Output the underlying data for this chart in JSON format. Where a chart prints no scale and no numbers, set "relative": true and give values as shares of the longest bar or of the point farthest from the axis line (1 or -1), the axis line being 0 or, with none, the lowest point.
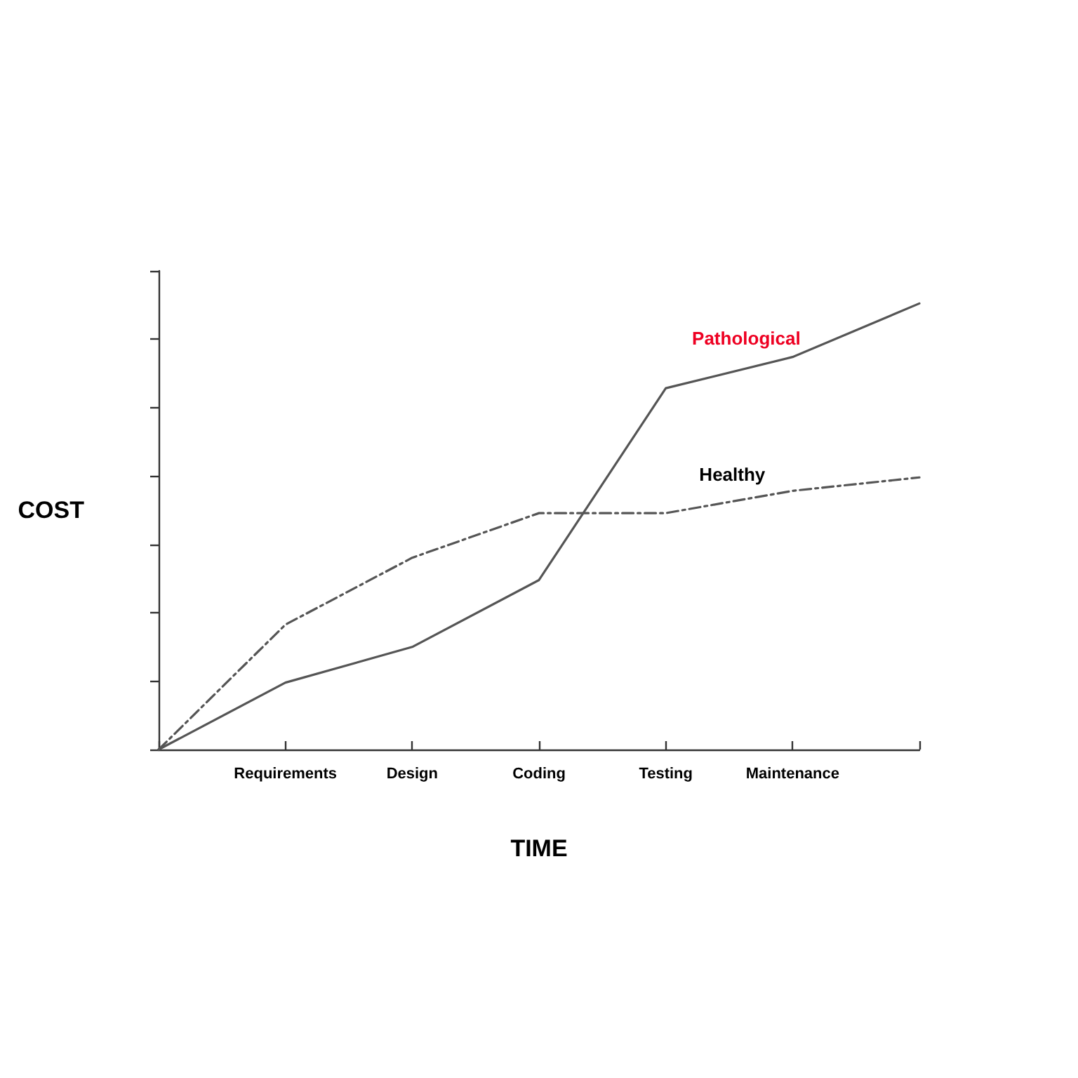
{
  "chart_data": {
    "type": "line",
    "xlabel": "TIME",
    "ylabel": "COST",
    "relative": true,
    "marker": "none",
    "categories": [
      null,
      "Requirements",
      "Design",
      "Coding",
      "Testing",
      "Maintenance",
      null
    ],
    "series": [
      {
        "name": "Pathological",
        "color": "#555555",
        "line_style": "solid",
        "values": [
          0,
          0.15,
          0.23,
          0.38,
          0.81,
          0.88,
          1
        ]
      },
      {
        "name": "Healthy",
        "color": "#555555",
        "line_style": "dashed",
        "values": [
          0,
          0.28,
          0.43,
          0.53,
          0.53,
          0.58,
          0.61
        ]
      }
    ]
  }
}
